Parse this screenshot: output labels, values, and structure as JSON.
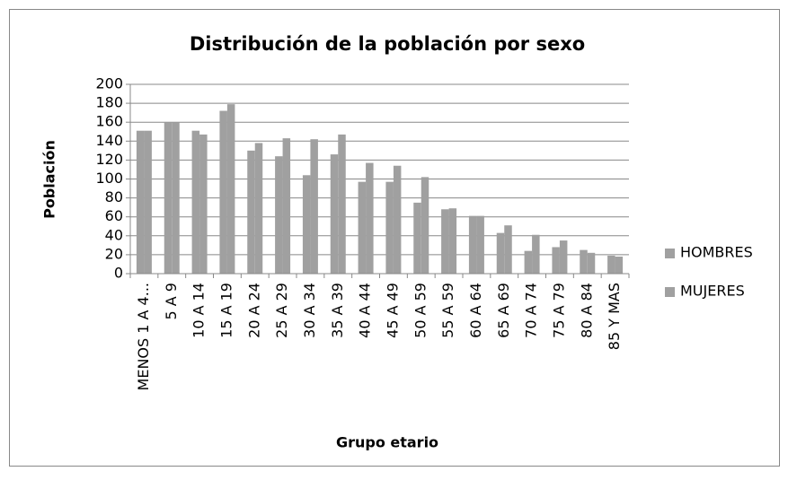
{
  "chart_data": {
    "type": "bar",
    "title": "Distribución de la población por sexo",
    "x_label": "Grupo etario",
    "y_label": "Población",
    "categories": [
      "MENOS 1 A 4...",
      "5 A 9",
      "10 A 14",
      "15 A 19",
      "20 A 24",
      "25 A 29",
      "30 A 34",
      "35 A 39",
      "40 A 44",
      "45 A 49",
      "50 A 59",
      "55 A 59",
      "60 A 64",
      "65 A 69",
      "70 A 74",
      "75 A 79",
      "80 A 84",
      "85 Y MAS"
    ],
    "series": [
      {
        "name": "HOMBRES",
        "color": "#a0a0a0",
        "values": [
          151,
          160,
          151,
          172,
          130,
          124,
          104,
          126,
          97,
          97,
          75,
          68,
          61,
          43,
          24,
          28,
          25,
          19
        ]
      },
      {
        "name": "MUJERES",
        "color": "#a0a0a0",
        "values": [
          151,
          160,
          147,
          179,
          138,
          143,
          142,
          147,
          117,
          114,
          102,
          69,
          61,
          51,
          41,
          35,
          22,
          18
        ]
      }
    ],
    "ylim": [
      0,
      200
    ],
    "yticks": [
      0,
      20,
      40,
      60,
      80,
      100,
      120,
      140,
      160,
      180,
      200
    ],
    "grid": true,
    "legend": "right"
  }
}
